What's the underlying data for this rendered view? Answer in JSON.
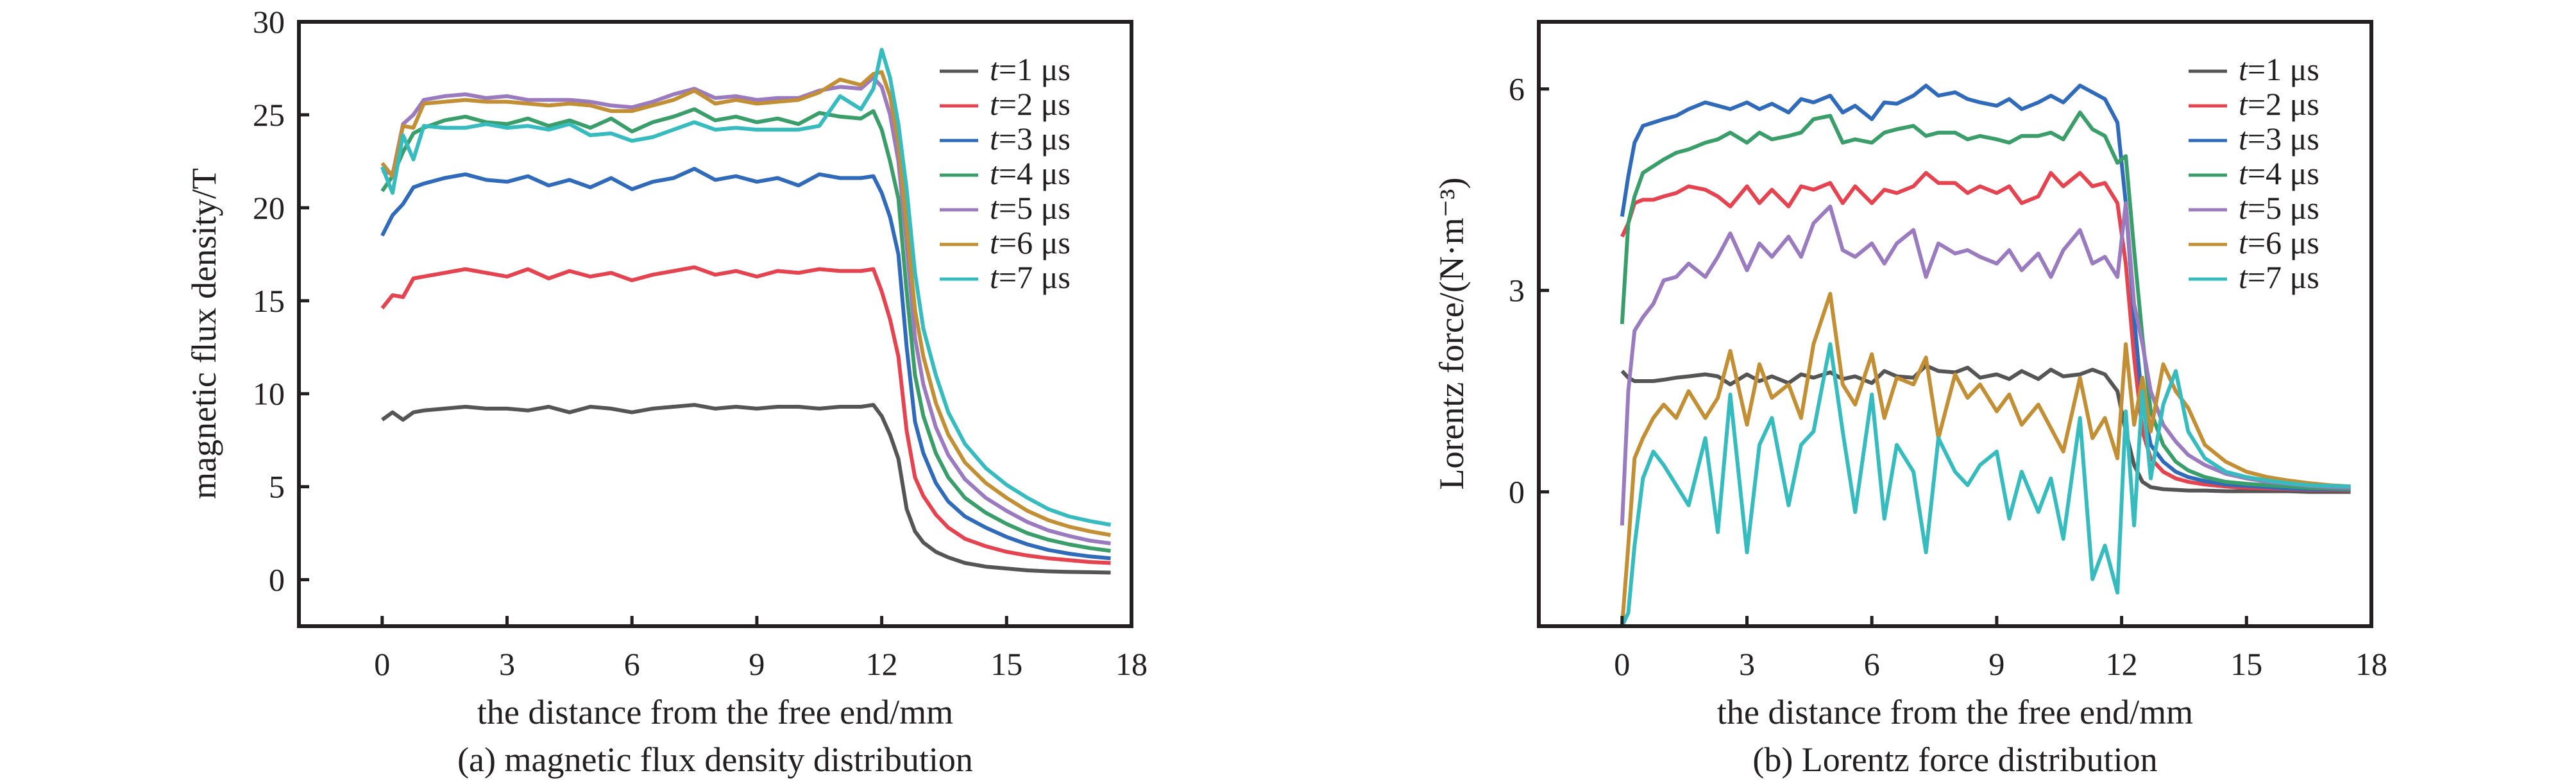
{
  "chart_data": [
    {
      "type": "line",
      "panel": "a",
      "caption": "(a) magnetic flux density distribution",
      "title": "",
      "xlabel": "the distance from the free end/mm",
      "ylabel": "magnetic flux density/T",
      "xlim": [
        -2,
        18
      ],
      "ylim": [
        -2.5,
        30
      ],
      "xticks": [
        0,
        3,
        6,
        9,
        12,
        15,
        18
      ],
      "yticks": [
        0,
        5,
        10,
        15,
        20,
        25,
        30
      ],
      "grid": false,
      "legend_position": "top-right",
      "x": [
        0,
        0.25,
        0.5,
        0.75,
        1,
        1.5,
        2,
        2.5,
        3,
        3.5,
        4,
        4.5,
        5,
        5.5,
        6,
        6.5,
        7,
        7.5,
        8,
        8.5,
        9,
        9.5,
        10,
        10.5,
        11,
        11.5,
        11.8,
        12,
        12.2,
        12.4,
        12.6,
        12.8,
        13,
        13.3,
        13.6,
        14,
        14.5,
        15,
        15.5,
        16,
        16.5,
        17,
        17.5
      ],
      "series": [
        {
          "name": "t=1 μs",
          "color": "#555555",
          "values": [
            8.6,
            9.0,
            8.6,
            9.0,
            9.1,
            9.2,
            9.3,
            9.2,
            9.2,
            9.1,
            9.3,
            9.0,
            9.3,
            9.2,
            9.0,
            9.2,
            9.3,
            9.4,
            9.2,
            9.3,
            9.2,
            9.3,
            9.3,
            9.2,
            9.3,
            9.3,
            9.4,
            8.8,
            7.8,
            6.5,
            3.8,
            2.6,
            2.0,
            1.5,
            1.2,
            0.9,
            0.7,
            0.6,
            0.5,
            0.45,
            0.42,
            0.4,
            0.38
          ]
        },
        {
          "name": "t=2 μs",
          "color": "#e5434f",
          "values": [
            14.6,
            15.3,
            15.2,
            16.2,
            16.3,
            16.5,
            16.7,
            16.5,
            16.3,
            16.7,
            16.2,
            16.6,
            16.3,
            16.5,
            16.1,
            16.4,
            16.6,
            16.8,
            16.4,
            16.6,
            16.3,
            16.6,
            16.5,
            16.7,
            16.6,
            16.6,
            16.7,
            15.5,
            14.0,
            12.0,
            8.0,
            5.5,
            4.5,
            3.5,
            2.8,
            2.2,
            1.8,
            1.5,
            1.3,
            1.15,
            1.05,
            0.95,
            0.9
          ]
        },
        {
          "name": "t=3 μs",
          "color": "#2f6bba",
          "values": [
            18.5,
            19.6,
            20.2,
            21.1,
            21.3,
            21.6,
            21.8,
            21.5,
            21.4,
            21.7,
            21.2,
            21.5,
            21.1,
            21.6,
            21.0,
            21.4,
            21.6,
            22.1,
            21.5,
            21.7,
            21.4,
            21.6,
            21.2,
            21.8,
            21.6,
            21.6,
            21.7,
            20.8,
            19.5,
            17.5,
            12.5,
            8.5,
            6.8,
            5.2,
            4.2,
            3.4,
            2.8,
            2.3,
            1.9,
            1.6,
            1.4,
            1.25,
            1.15
          ]
        },
        {
          "name": "t=4 μs",
          "color": "#3a9e6a",
          "values": [
            20.9,
            21.7,
            23.0,
            24.0,
            24.3,
            24.7,
            24.9,
            24.6,
            24.5,
            24.8,
            24.4,
            24.7,
            24.3,
            24.8,
            24.1,
            24.6,
            24.9,
            25.3,
            24.7,
            24.9,
            24.6,
            24.8,
            24.5,
            25.1,
            24.9,
            24.8,
            25.2,
            24.2,
            22.5,
            20.5,
            15.5,
            11.0,
            8.8,
            6.8,
            5.5,
            4.4,
            3.6,
            3.0,
            2.5,
            2.15,
            1.9,
            1.7,
            1.55
          ]
        },
        {
          "name": "t=5 μs",
          "color": "#9b7bbf",
          "values": [
            22.0,
            21.8,
            24.5,
            25.0,
            25.8,
            26.0,
            26.1,
            25.9,
            26.0,
            25.8,
            25.8,
            25.8,
            25.7,
            25.5,
            25.4,
            25.7,
            26.1,
            26.4,
            25.9,
            26.0,
            25.8,
            25.9,
            25.9,
            26.3,
            26.5,
            26.4,
            27.0,
            26.5,
            25.0,
            22.5,
            18.0,
            13.0,
            10.5,
            8.2,
            6.7,
            5.4,
            4.4,
            3.7,
            3.1,
            2.65,
            2.35,
            2.1,
            1.95
          ]
        },
        {
          "name": "t=6 μs",
          "color": "#c28f34",
          "values": [
            22.4,
            21.7,
            24.4,
            24.3,
            25.6,
            25.7,
            25.8,
            25.7,
            25.7,
            25.6,
            25.5,
            25.6,
            25.5,
            25.2,
            25.2,
            25.5,
            25.8,
            26.3,
            25.6,
            25.8,
            25.6,
            25.7,
            25.8,
            26.2,
            26.9,
            26.6,
            27.2,
            27.3,
            26.0,
            23.5,
            19.0,
            14.5,
            12.0,
            9.5,
            7.8,
            6.3,
            5.2,
            4.4,
            3.7,
            3.2,
            2.85,
            2.6,
            2.4
          ]
        },
        {
          "name": "t=7 μs",
          "color": "#36bcbf",
          "values": [
            22.2,
            20.8,
            23.9,
            22.6,
            24.4,
            24.3,
            24.3,
            24.5,
            24.3,
            24.4,
            24.2,
            24.5,
            23.9,
            24.0,
            23.6,
            23.8,
            24.2,
            24.6,
            24.2,
            24.3,
            24.2,
            24.2,
            24.2,
            24.4,
            26.0,
            25.3,
            26.4,
            28.5,
            27.0,
            24.5,
            21.0,
            16.5,
            13.5,
            11.0,
            9.0,
            7.3,
            6.0,
            5.1,
            4.4,
            3.8,
            3.4,
            3.15,
            2.95
          ]
        }
      ]
    },
    {
      "type": "line",
      "panel": "b",
      "caption": "(b) Lorentz force distribution",
      "title": "",
      "xlabel": "the distance from the free end/mm",
      "ylabel": "Lorentz force/(N·m⁻³)",
      "xlim": [
        -2,
        18
      ],
      "ylim": [
        -2,
        7
      ],
      "xticks": [
        0,
        3,
        6,
        9,
        12,
        15,
        18
      ],
      "yticks": [
        0,
        3,
        6
      ],
      "grid": false,
      "legend_position": "top-right",
      "x": [
        0,
        0.15,
        0.3,
        0.5,
        0.75,
        1,
        1.3,
        1.6,
        2,
        2.3,
        2.6,
        3,
        3.3,
        3.6,
        4,
        4.3,
        4.6,
        5,
        5.3,
        5.6,
        6,
        6.3,
        6.6,
        7,
        7.3,
        7.6,
        8,
        8.3,
        8.6,
        9,
        9.3,
        9.6,
        10,
        10.3,
        10.6,
        11,
        11.3,
        11.6,
        11.9,
        12.1,
        12.3,
        12.5,
        12.7,
        13,
        13.3,
        13.6,
        14,
        14.5,
        15,
        15.5,
        16,
        16.5,
        17,
        17.5
      ],
      "series": [
        {
          "name": "t=1 μs",
          "color": "#555555",
          "values": [
            1.8,
            1.7,
            1.65,
            1.65,
            1.65,
            1.67,
            1.7,
            1.72,
            1.75,
            1.72,
            1.6,
            1.75,
            1.65,
            1.72,
            1.62,
            1.75,
            1.7,
            1.78,
            1.68,
            1.72,
            1.62,
            1.8,
            1.72,
            1.7,
            1.88,
            1.8,
            1.78,
            1.85,
            1.7,
            1.75,
            1.68,
            1.8,
            1.68,
            1.82,
            1.72,
            1.75,
            1.82,
            1.75,
            1.5,
            0.9,
            0.4,
            0.15,
            0.07,
            0.04,
            0.03,
            0.02,
            0.02,
            0.01,
            0.01,
            0.01,
            0.01,
            0.0,
            0.0,
            0.0
          ]
        },
        {
          "name": "t=2 μs",
          "color": "#e5434f",
          "values": [
            3.8,
            4.0,
            4.3,
            4.35,
            4.35,
            4.4,
            4.45,
            4.55,
            4.5,
            4.4,
            4.25,
            4.55,
            4.3,
            4.5,
            4.25,
            4.55,
            4.5,
            4.6,
            4.3,
            4.55,
            4.3,
            4.5,
            4.45,
            4.55,
            4.75,
            4.6,
            4.6,
            4.45,
            4.55,
            4.45,
            4.55,
            4.3,
            4.4,
            4.75,
            4.55,
            4.75,
            4.55,
            4.6,
            4.3,
            3.4,
            2.0,
            0.9,
            0.5,
            0.3,
            0.2,
            0.15,
            0.11,
            0.08,
            0.06,
            0.05,
            0.04,
            0.03,
            0.03,
            0.02
          ]
        },
        {
          "name": "t=3 μs",
          "color": "#2f6bba",
          "values": [
            4.1,
            4.7,
            5.2,
            5.45,
            5.5,
            5.55,
            5.6,
            5.7,
            5.8,
            5.75,
            5.7,
            5.8,
            5.7,
            5.78,
            5.65,
            5.85,
            5.8,
            5.9,
            5.65,
            5.75,
            5.55,
            5.8,
            5.78,
            5.9,
            6.05,
            5.9,
            5.95,
            5.85,
            5.8,
            5.75,
            5.85,
            5.7,
            5.8,
            5.9,
            5.8,
            6.05,
            5.95,
            5.85,
            5.5,
            4.3,
            2.6,
            1.3,
            0.7,
            0.45,
            0.3,
            0.22,
            0.16,
            0.11,
            0.09,
            0.07,
            0.05,
            0.04,
            0.04,
            0.03
          ]
        },
        {
          "name": "t=4 μs",
          "color": "#3a9e6a",
          "values": [
            2.5,
            4.0,
            4.4,
            4.75,
            4.85,
            4.95,
            5.05,
            5.1,
            5.2,
            5.25,
            5.35,
            5.2,
            5.35,
            5.25,
            5.3,
            5.35,
            5.55,
            5.6,
            5.2,
            5.25,
            5.2,
            5.35,
            5.4,
            5.45,
            5.3,
            5.35,
            5.35,
            5.25,
            5.3,
            5.25,
            5.2,
            5.3,
            5.3,
            5.35,
            5.25,
            5.65,
            5.4,
            5.3,
            4.9,
            5.0,
            3.6,
            2.3,
            1.2,
            0.7,
            0.45,
            0.32,
            0.22,
            0.15,
            0.12,
            0.1,
            0.08,
            0.06,
            0.05,
            0.04
          ]
        },
        {
          "name": "t=5 μs",
          "color": "#9b7bbf",
          "values": [
            -0.5,
            1.5,
            2.4,
            2.6,
            2.8,
            3.15,
            3.2,
            3.4,
            3.2,
            3.5,
            3.85,
            3.3,
            3.7,
            3.5,
            3.8,
            3.5,
            4.0,
            4.25,
            3.6,
            3.5,
            3.7,
            3.4,
            3.7,
            3.9,
            3.2,
            3.7,
            3.55,
            3.6,
            3.5,
            3.4,
            3.6,
            3.3,
            3.55,
            3.2,
            3.6,
            3.9,
            3.4,
            3.5,
            3.2,
            4.3,
            2.8,
            2.2,
            1.5,
            1.0,
            0.75,
            0.55,
            0.4,
            0.27,
            0.2,
            0.15,
            0.12,
            0.09,
            0.07,
            0.06
          ]
        },
        {
          "name": "t=6 μs",
          "color": "#c28f34",
          "values": [
            -2.0,
            -0.8,
            0.5,
            0.8,
            1.1,
            1.3,
            1.1,
            1.5,
            1.1,
            1.4,
            2.1,
            1.0,
            1.9,
            1.4,
            1.6,
            1.1,
            2.2,
            2.95,
            1.6,
            1.3,
            2.05,
            1.1,
            1.7,
            1.6,
            2.0,
            0.8,
            1.75,
            1.4,
            1.6,
            1.2,
            1.45,
            1.0,
            1.3,
            0.95,
            0.6,
            1.7,
            0.8,
            1.1,
            0.5,
            2.2,
            1.0,
            1.7,
            0.9,
            1.9,
            1.5,
            1.25,
            0.7,
            0.45,
            0.3,
            0.22,
            0.17,
            0.13,
            0.1,
            0.08
          ]
        },
        {
          "name": "t=7 μs",
          "color": "#36bcbf",
          "values": [
            -2.0,
            -1.8,
            -0.8,
            0.2,
            0.6,
            0.4,
            0.1,
            -0.2,
            0.8,
            -0.6,
            1.45,
            -0.9,
            0.7,
            1.1,
            -0.2,
            0.7,
            0.9,
            2.2,
            0.9,
            -0.3,
            1.45,
            -0.4,
            0.7,
            0.3,
            -0.9,
            0.8,
            0.3,
            0.1,
            0.4,
            0.6,
            -0.4,
            0.3,
            -0.3,
            0.2,
            -0.7,
            1.1,
            -1.3,
            -0.8,
            -1.5,
            1.2,
            -0.5,
            1.5,
            0.2,
            1.3,
            1.8,
            0.9,
            0.5,
            0.3,
            0.22,
            0.17,
            0.13,
            0.1,
            0.09,
            0.08
          ]
        }
      ]
    }
  ]
}
